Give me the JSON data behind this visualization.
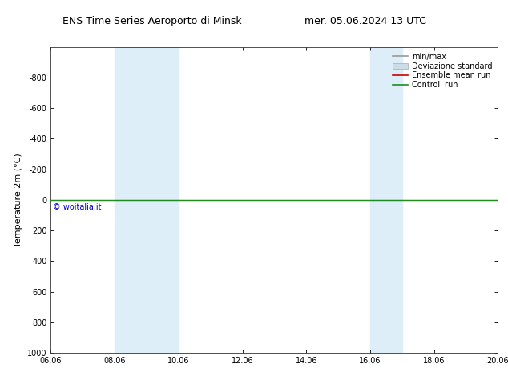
{
  "title_left": "ENS Time Series Aeroporto di Minsk",
  "title_right": "mer. 05.06.2024 13 UTC",
  "ylabel": "Temperature 2m (°C)",
  "xlim": [
    6.06,
    20.06
  ],
  "ylim": [
    1000,
    -1000
  ],
  "yticks": [
    -800,
    -600,
    -400,
    -200,
    0,
    200,
    400,
    600,
    800,
    1000
  ],
  "xticks": [
    6.06,
    8.06,
    10.06,
    12.06,
    14.06,
    16.06,
    18.06,
    20.06
  ],
  "xticklabels": [
    "06.06",
    "08.06",
    "10.06",
    "12.06",
    "14.06",
    "16.06",
    "18.06",
    "20.06"
  ],
  "bg_color": "#ffffff",
  "plot_bg_color": "#ffffff",
  "shaded_bands": [
    {
      "x_start": 8.06,
      "x_end": 10.06,
      "color": "#ddeef8"
    },
    {
      "x_start": 16.06,
      "x_end": 17.06,
      "color": "#ddeef8"
    }
  ],
  "green_line_y": 0,
  "green_line_color": "#228B22",
  "green_line_lw": 1.0,
  "red_line_y": 0,
  "red_line_color": "#cc0000",
  "red_line_lw": 0.8,
  "legend_entries": [
    {
      "label": "min/max",
      "color": "#999999",
      "type": "line",
      "lw": 1.2
    },
    {
      "label": "Deviazione standard",
      "color": "#ccdde8",
      "type": "band"
    },
    {
      "label": "Ensemble mean run",
      "color": "#cc0000",
      "type": "line",
      "lw": 1.2
    },
    {
      "label": "Controll run",
      "color": "#228B22",
      "type": "line",
      "lw": 1.2
    }
  ],
  "watermark": "© woitalia.it",
  "watermark_color": "#0000cc",
  "title_fontsize": 9,
  "axis_label_fontsize": 8,
  "tick_fontsize": 7,
  "legend_fontsize": 7
}
